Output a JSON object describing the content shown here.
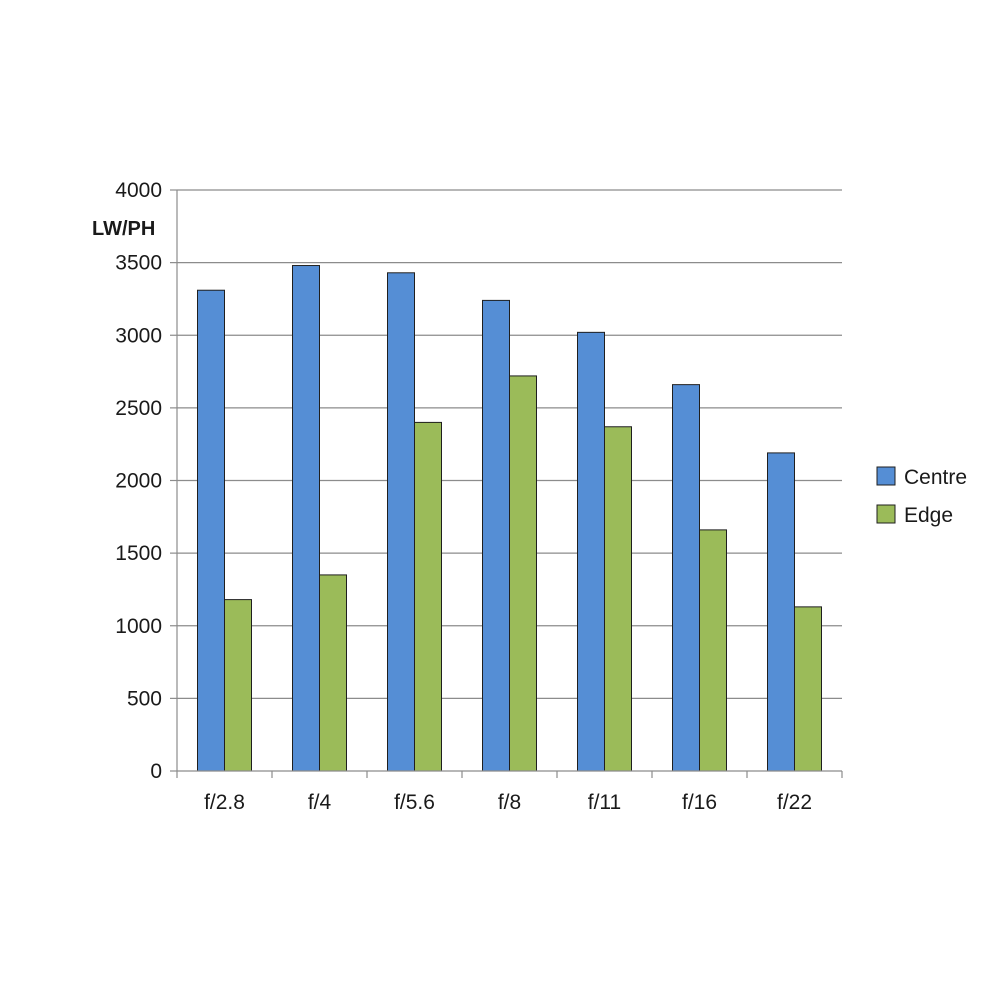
{
  "chart_data": {
    "type": "bar",
    "title": "",
    "xlabel": "",
    "ylabel": "LW/PH",
    "ylim": [
      0,
      4000
    ],
    "yticks": [
      0,
      500,
      1000,
      1500,
      2000,
      2500,
      3000,
      3500,
      4000
    ],
    "grid": true,
    "legend_position": "right",
    "categories": [
      "f/2.8",
      "f/4",
      "f/5.6",
      "f/8",
      "f/11",
      "f/16",
      "f/22"
    ],
    "series": [
      {
        "name": "Centre",
        "color": "#558ED5",
        "values": [
          3310,
          3480,
          3430,
          3240,
          3020,
          2660,
          2190
        ]
      },
      {
        "name": "Edge",
        "color": "#9BBB59",
        "values": [
          1180,
          1350,
          2400,
          2720,
          2370,
          1660,
          1130
        ]
      }
    ]
  }
}
